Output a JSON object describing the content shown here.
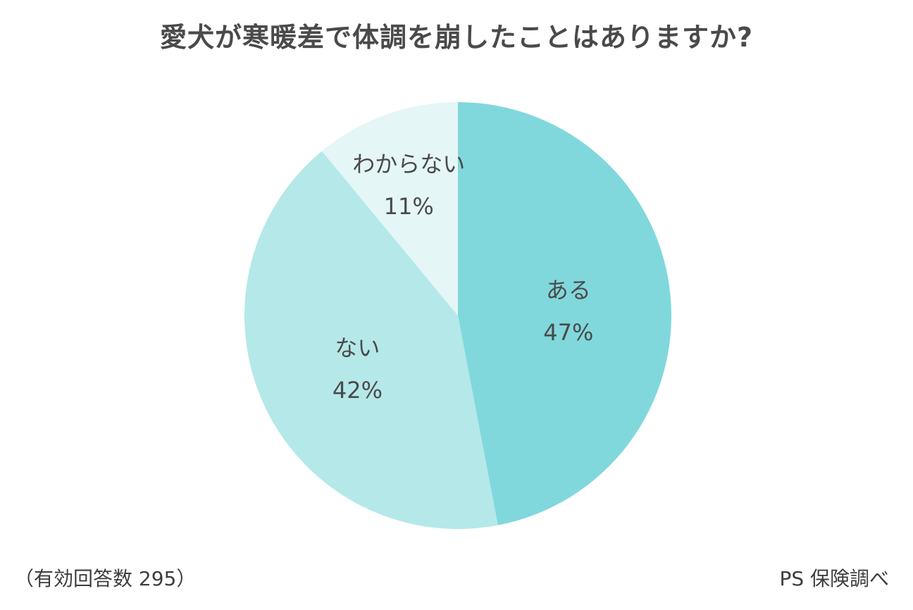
{
  "chart_data": {
    "type": "pie",
    "title": "愛犬が寒暖差で体調を崩したことはありますか?",
    "slices": [
      {
        "label": "ある",
        "value": 47,
        "value_label": "47%",
        "color": "#80d8dd"
      },
      {
        "label": "ない",
        "value": 42,
        "value_label": "42%",
        "color": "#b5e8e9"
      },
      {
        "label": "わからない",
        "value": 11,
        "value_label": "11%",
        "color": "#e4f6f6"
      }
    ],
    "start": "12 o'clock",
    "direction": "clockwise"
  },
  "footnote": {
    "sample": "（有効回答数 295）",
    "source": "PS 保険調べ"
  }
}
